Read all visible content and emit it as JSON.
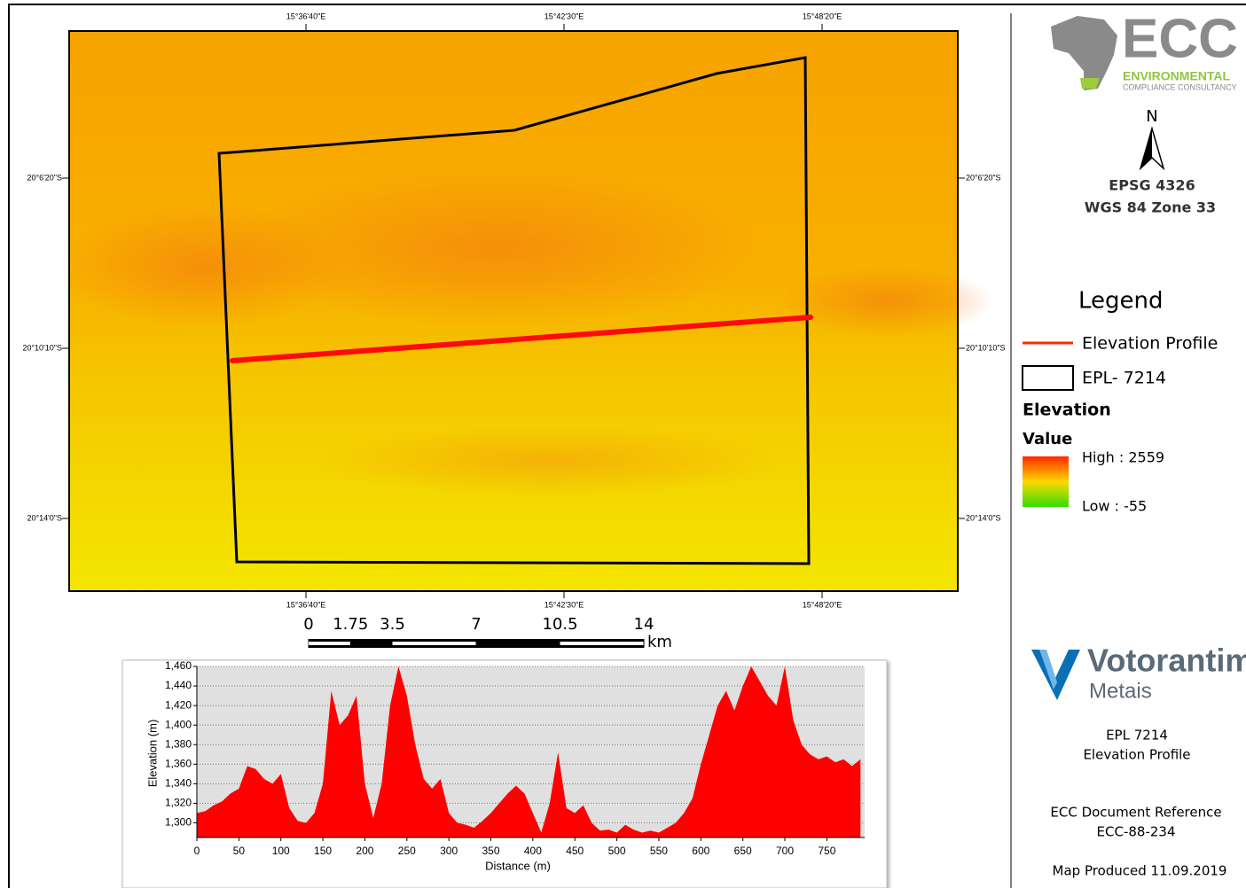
{
  "map": {
    "longitude_labels": [
      "15°36'40\"E",
      "15°42'30\"E",
      "15°48'20\"E"
    ],
    "latitude_labels": [
      "20°6'20\"S",
      "20°10'10\"S",
      "20°14'0\"S"
    ]
  },
  "scale_bar": {
    "ticks": [
      0,
      1.75,
      3.5,
      7,
      10.5,
      14
    ],
    "unit": "km"
  },
  "logos": {
    "ecc": [
      "ECC",
      "ENVIRONMENTAL",
      "COMPLIANCE CONSULTANCY"
    ],
    "client": [
      "Votorantim",
      "Metais"
    ]
  },
  "north_arrow": "N",
  "crs": [
    "EPSG 4326",
    "WGS 84 Zone 33"
  ],
  "legend": {
    "title": "Legend",
    "items": [
      "Elevation Profile",
      "EPL- 7214"
    ],
    "raster_title": "Elevation",
    "raster_field": "Value",
    "high": "High : 2559",
    "low": "Low : -55"
  },
  "info": [
    "EPL 7214",
    "Elevation Profile",
    "ECC Document Reference",
    "ECC-88-234",
    "Map Produced 11.09.2019"
  ],
  "chart_data": {
    "type": "area",
    "color": "#ff0000",
    "xlabel": "Distance (m)",
    "ylabel": "Elevation (m)",
    "x": [
      0,
      10,
      20,
      30,
      40,
      50,
      60,
      70,
      80,
      90,
      100,
      110,
      120,
      130,
      140,
      150,
      160,
      170,
      180,
      190,
      200,
      210,
      220,
      230,
      240,
      250,
      260,
      270,
      280,
      290,
      300,
      310,
      320,
      330,
      340,
      350,
      360,
      370,
      380,
      390,
      400,
      410,
      420,
      430,
      440,
      450,
      460,
      470,
      480,
      490,
      500,
      510,
      520,
      530,
      540,
      550,
      560,
      570,
      580,
      590,
      600,
      610,
      620,
      630,
      640,
      650,
      660,
      670,
      680,
      690,
      700,
      710,
      720,
      730,
      740,
      750,
      760,
      770,
      780,
      790
    ],
    "values": [
      1310,
      1312,
      1318,
      1322,
      1330,
      1335,
      1358,
      1355,
      1345,
      1340,
      1350,
      1315,
      1302,
      1300,
      1310,
      1340,
      1435,
      1400,
      1410,
      1430,
      1340,
      1305,
      1340,
      1420,
      1460,
      1430,
      1380,
      1345,
      1335,
      1345,
      1310,
      1300,
      1298,
      1295,
      1302,
      1310,
      1320,
      1330,
      1338,
      1330,
      1310,
      1290,
      1320,
      1372,
      1315,
      1310,
      1318,
      1300,
      1292,
      1293,
      1290,
      1298,
      1293,
      1290,
      1292,
      1290,
      1295,
      1300,
      1310,
      1325,
      1360,
      1390,
      1420,
      1435,
      1415,
      1440,
      1460,
      1445,
      1430,
      1420,
      1460,
      1405,
      1380,
      1370,
      1365,
      1368,
      1362,
      1365,
      1358,
      1365
    ],
    "xlim": [
      0,
      795
    ],
    "ylim": [
      1285,
      1460
    ],
    "xticks": [
      0,
      50,
      100,
      150,
      200,
      250,
      300,
      350,
      400,
      450,
      500,
      550,
      600,
      650,
      700,
      750
    ],
    "yticks": [
      {
        "value": 1300,
        "label": "1,300"
      },
      {
        "value": 1320,
        "label": "1,320"
      },
      {
        "value": 1340,
        "label": "1,340"
      },
      {
        "value": 1360,
        "label": "1,360"
      },
      {
        "value": 1380,
        "label": "1,380"
      },
      {
        "value": 1400,
        "label": "1,400"
      },
      {
        "value": 1420,
        "label": "1,420"
      },
      {
        "value": 1440,
        "label": "1,440"
      },
      {
        "value": 1460,
        "label": "1,460"
      }
    ],
    "grid": true
  }
}
